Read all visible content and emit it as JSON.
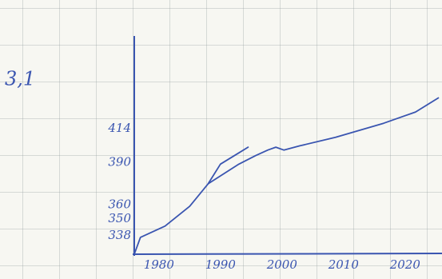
{
  "chart_data": {
    "type": "line",
    "title": "3,1",
    "series": [
      {
        "color": "#3a55b0",
        "x": [
          1976,
          1977,
          1981,
          1985,
          1988,
          1990,
          1993,
          1994.5
        ],
        "values": [
          325,
          337,
          345,
          359,
          375,
          389,
          397,
          401
        ]
      },
      {
        "color": "#3a55b0",
        "x": [
          1988,
          1993,
          1995.7,
          1997.7,
          1999,
          2000.3,
          2002.9,
          2008.7,
          2016.5,
          2021.7,
          2025.4
        ],
        "values": [
          375,
          389,
          395,
          399,
          401,
          399,
          402,
          408,
          418,
          426,
          436
        ]
      }
    ],
    "xlim": [
      1976,
      2026
    ],
    "xticks": [
      1980,
      1990,
      2000,
      2010,
      2020
    ],
    "ylim": [
      325,
      480
    ],
    "yticks": [
      338,
      350,
      360,
      390,
      414
    ],
    "grid": false
  }
}
